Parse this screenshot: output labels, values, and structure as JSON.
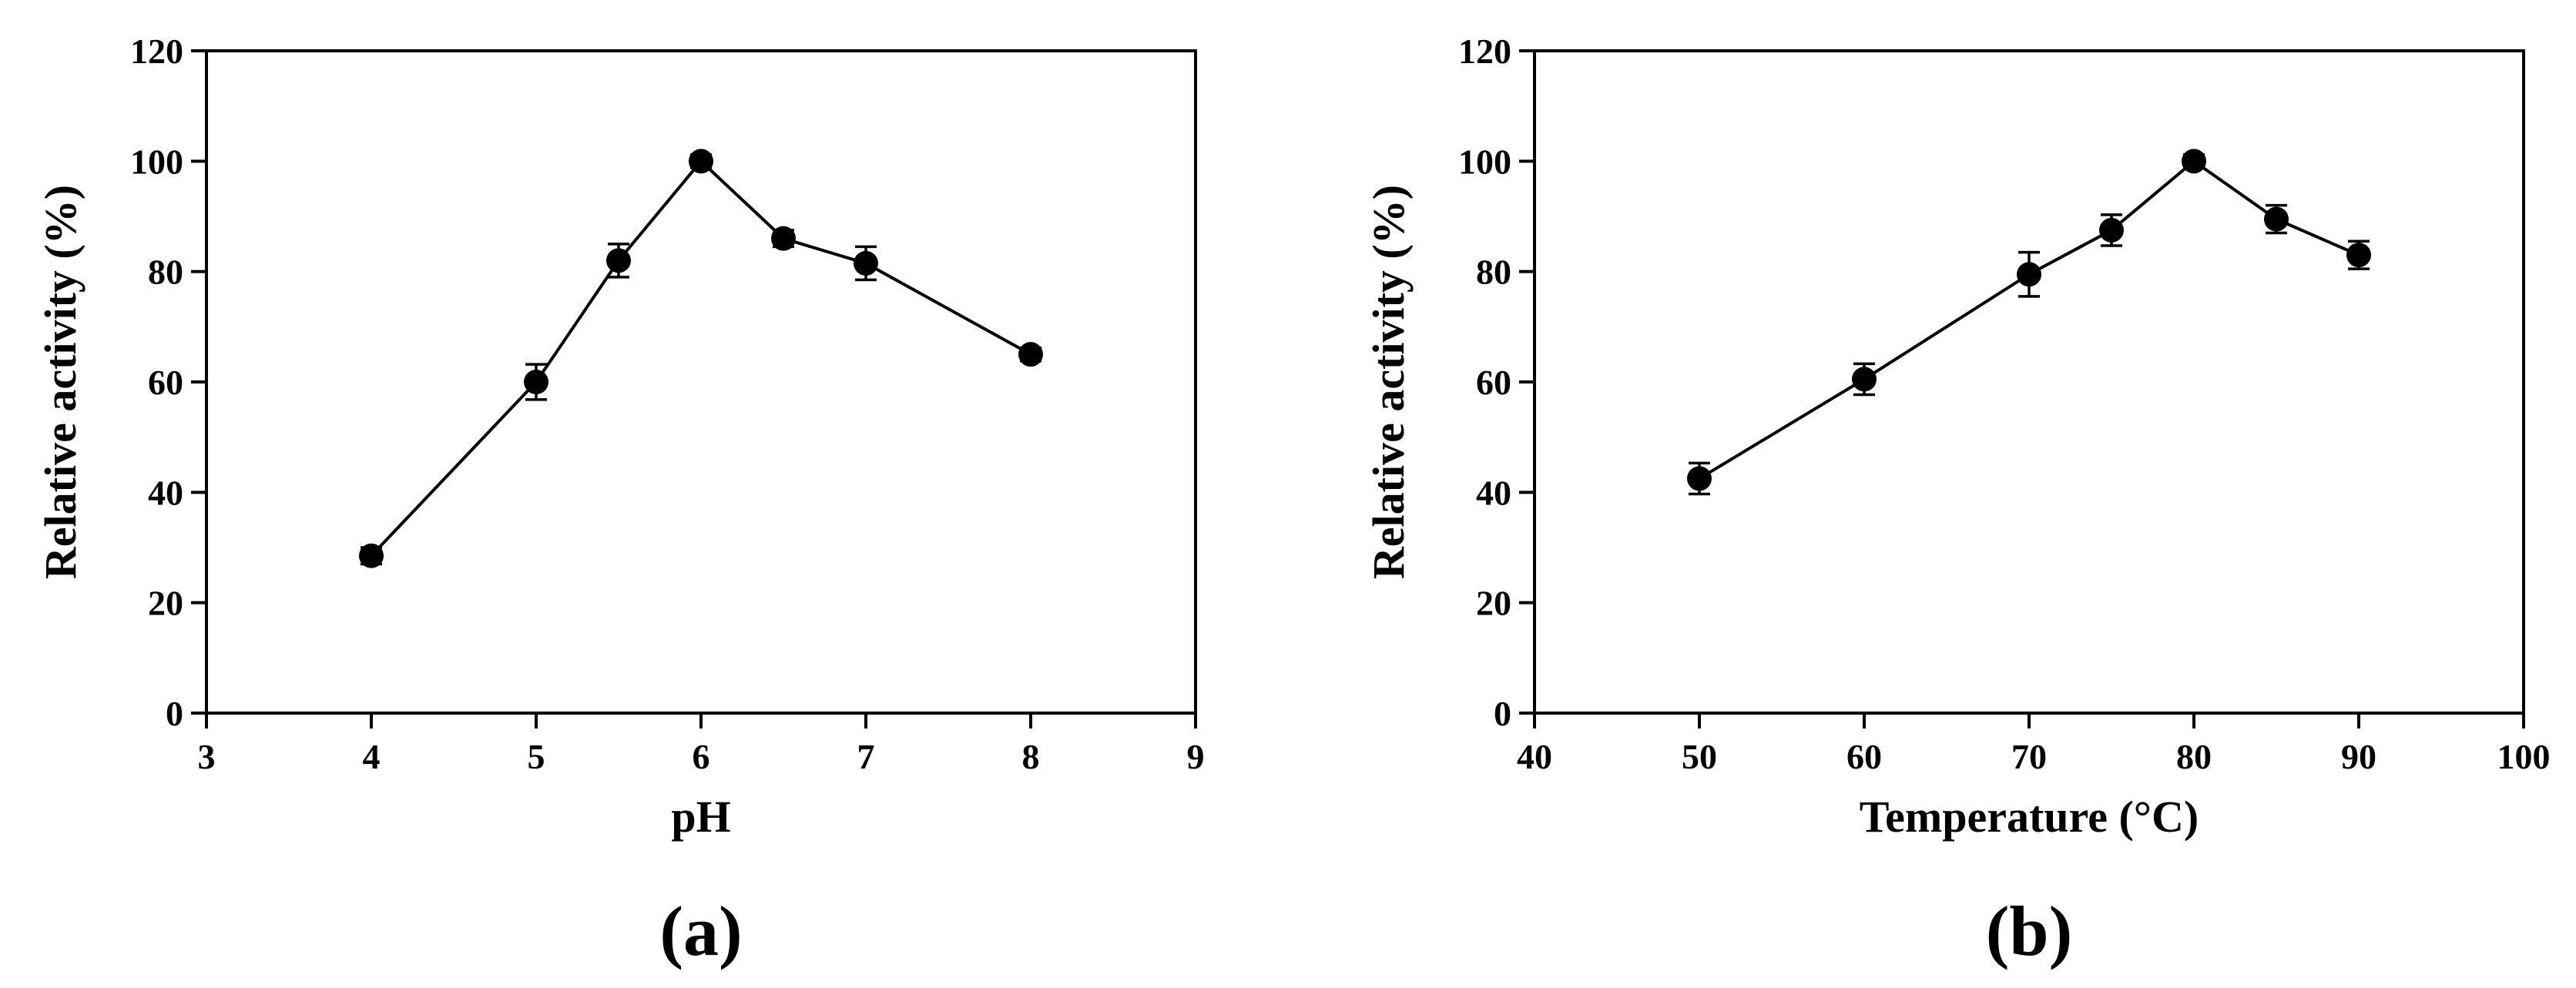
{
  "chart_data": [
    {
      "type": "line",
      "panel_label": "(a)",
      "xlabel": "pH",
      "ylabel": "Relative activity (%)",
      "xlim": [
        3,
        9
      ],
      "ylim": [
        0,
        120
      ],
      "xticks": [
        3,
        4,
        5,
        6,
        7,
        8,
        9
      ],
      "yticks": [
        0,
        20,
        40,
        60,
        80,
        100,
        120
      ],
      "x": [
        4,
        5,
        5.5,
        6,
        6.5,
        7,
        8
      ],
      "y": [
        28.5,
        60,
        82,
        100,
        86,
        81.5,
        65
      ],
      "error": [
        1.5,
        3.2,
        3.0,
        1.2,
        1.5,
        3.0,
        1.2
      ],
      "grid": false
    },
    {
      "type": "line",
      "panel_label": "(b)",
      "xlabel": "Temperature (°C)",
      "ylabel": "Relative activity (%)",
      "xlim": [
        40,
        100
      ],
      "ylim": [
        0,
        120
      ],
      "xticks": [
        40,
        50,
        60,
        70,
        80,
        90,
        100
      ],
      "yticks": [
        0,
        20,
        40,
        60,
        80,
        100,
        120
      ],
      "x": [
        50,
        60,
        70,
        75,
        80,
        85,
        90
      ],
      "y": [
        42.5,
        60.5,
        79.5,
        87.5,
        100,
        89.5,
        83
      ],
      "error": [
        2.8,
        2.8,
        4.0,
        2.8,
        1.2,
        2.5,
        2.5
      ],
      "grid": false
    }
  ]
}
